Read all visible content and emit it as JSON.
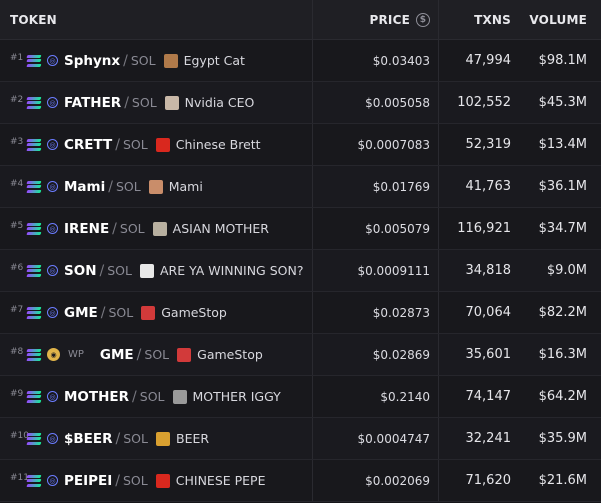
{
  "header": {
    "token": "TOKEN",
    "price": "PRICE",
    "price_icon": "$",
    "txns": "TXNS",
    "volume": "VOLUME"
  },
  "rows": [
    {
      "rank": "#1",
      "symbol": "Sphynx",
      "quote": "SOL",
      "name": "Egypt Cat",
      "price": "$0.03403",
      "txns": "47,994",
      "volume": "$98.1M",
      "avatar_color": "#b07a4a",
      "wp": ""
    },
    {
      "rank": "#2",
      "symbol": "FATHER",
      "quote": "SOL",
      "name": "Nvidia CEO",
      "price": "$0.005058",
      "txns": "102,552",
      "volume": "$45.3M",
      "avatar_color": "#c9b8a8",
      "wp": ""
    },
    {
      "rank": "#3",
      "symbol": "CRETT",
      "quote": "SOL",
      "name": "Chinese Brett",
      "price": "$0.0007083",
      "txns": "52,319",
      "volume": "$13.4M",
      "avatar_color": "#d9281e",
      "wp": ""
    },
    {
      "rank": "#4",
      "symbol": "Mami",
      "quote": "SOL",
      "name": "Mami",
      "price": "$0.01769",
      "txns": "41,763",
      "volume": "$36.1M",
      "avatar_color": "#c98d6a",
      "wp": ""
    },
    {
      "rank": "#5",
      "symbol": "IRENE",
      "quote": "SOL",
      "name": "ASIAN MOTHER",
      "price": "$0.005079",
      "txns": "116,921",
      "volume": "$34.7M",
      "avatar_color": "#b8b0a0",
      "wp": ""
    },
    {
      "rank": "#6",
      "symbol": "SON",
      "quote": "SOL",
      "name": "ARE YA WINNING SON?",
      "price": "$0.0009111",
      "txns": "34,818",
      "volume": "$9.0M",
      "avatar_color": "#e8e8e8",
      "wp": ""
    },
    {
      "rank": "#7",
      "symbol": "GME",
      "quote": "SOL",
      "name": "GameStop",
      "price": "$0.02873",
      "txns": "70,064",
      "volume": "$82.2M",
      "avatar_color": "#d23a3a",
      "wp": ""
    },
    {
      "rank": "#8",
      "symbol": "GME",
      "quote": "SOL",
      "name": "GameStop",
      "price": "$0.02869",
      "txns": "35,601",
      "volume": "$16.3M",
      "avatar_color": "#d23a3a",
      "wp": "WP"
    },
    {
      "rank": "#9",
      "symbol": "MOTHER",
      "quote": "SOL",
      "name": "MOTHER IGGY",
      "price": "$0.2140",
      "txns": "74,147",
      "volume": "$64.2M",
      "avatar_color": "#9a9a9a",
      "wp": ""
    },
    {
      "rank": "#10",
      "symbol": "$BEER",
      "quote": "SOL",
      "name": "BEER",
      "price": "$0.0004747",
      "txns": "32,241",
      "volume": "$35.9M",
      "avatar_color": "#d9a030",
      "wp": ""
    },
    {
      "rank": "#11",
      "symbol": "PEIPEI",
      "quote": "SOL",
      "name": "CHINESE PEPE",
      "price": "$0.002069",
      "txns": "71,620",
      "volume": "$21.6M",
      "avatar_color": "#d9281e",
      "wp": ""
    }
  ]
}
